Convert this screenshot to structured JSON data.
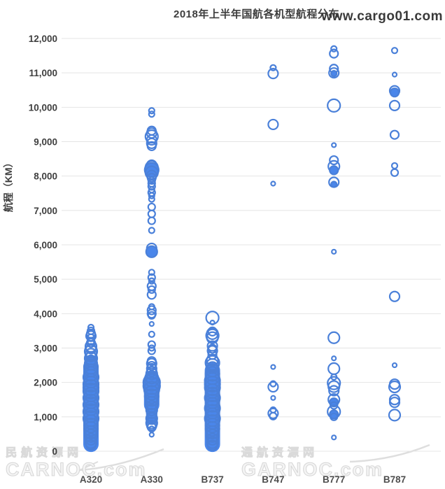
{
  "title": "2018年上半年国航各机型航程分布",
  "watermarks": {
    "top_right": "www.cargo01.com",
    "bottom_left_line1": "民航资源网",
    "bottom_left_line2": "CARNOC.com",
    "bottom_right_line1": "通航资源网",
    "bottom_right_line2": "GARNOC.com"
  },
  "chart_data": {
    "type": "scatter",
    "title": "2018年上半年国航各机型航程分布",
    "xlabel": "",
    "ylabel": "航程（KM）",
    "ylim": [
      0,
      12000
    ],
    "ytick_step": 1000,
    "ytick_labels": [
      "0",
      "1,000",
      "2,000",
      "3,000",
      "4,000",
      "5,000",
      "6,000",
      "7,000",
      "8,000",
      "9,000",
      "10,000",
      "11,000",
      "12,000"
    ],
    "grid": true,
    "legend": "none",
    "categories": [
      "A320",
      "A330",
      "B737",
      "B747",
      "B777",
      "B787"
    ],
    "colors": {
      "bubble_stroke": "#4a80d9",
      "bubble_fill": "#4a86ea",
      "gridline": "#e4e4e4",
      "tick_text": "#3f3f3f",
      "category_text": "#4d4d4d"
    },
    "point_format": "[range_km, radius_px, filled_flag]",
    "series": [
      {
        "name": "A320",
        "dense": [
          {
            "from": 200,
            "to": 2400,
            "r": 11
          },
          {
            "from": 2400,
            "to": 2650,
            "r": 8
          }
        ],
        "points": [
          [
            3600,
            4,
            0
          ],
          [
            3500,
            5,
            0
          ],
          [
            3420,
            6,
            0
          ],
          [
            3350,
            7,
            0
          ],
          [
            3300,
            5,
            0
          ],
          [
            3200,
            5,
            0
          ],
          [
            3150,
            6,
            0
          ],
          [
            3050,
            8,
            0
          ],
          [
            2980,
            7,
            0
          ],
          [
            2900,
            9,
            0
          ],
          [
            2820,
            8,
            0
          ],
          [
            2750,
            7,
            0
          ],
          [
            2700,
            9,
            0
          ],
          [
            2620,
            8,
            0
          ],
          [
            2550,
            9,
            0
          ],
          [
            2450,
            10,
            0
          ],
          [
            2350,
            9,
            0
          ],
          [
            2250,
            10,
            0
          ],
          [
            2150,
            11,
            0
          ],
          [
            2050,
            10,
            0
          ],
          [
            1950,
            11,
            0
          ],
          [
            1850,
            11,
            0
          ],
          [
            1750,
            11,
            0
          ],
          [
            1650,
            10,
            0
          ],
          [
            1550,
            11,
            0
          ],
          [
            1450,
            10,
            0
          ],
          [
            1350,
            11,
            0
          ],
          [
            1250,
            10,
            0
          ],
          [
            1150,
            11,
            0
          ],
          [
            1050,
            10,
            0
          ],
          [
            950,
            11,
            0
          ],
          [
            850,
            10,
            0
          ],
          [
            750,
            10,
            0
          ],
          [
            650,
            10,
            0
          ],
          [
            550,
            9,
            0
          ],
          [
            450,
            9,
            0
          ],
          [
            350,
            8,
            0
          ],
          [
            250,
            8,
            0
          ],
          [
            180,
            7,
            0
          ]
        ]
      },
      {
        "name": "A330",
        "dense": [
          {
            "from": 1350,
            "to": 2100,
            "r": 11
          },
          {
            "from": 950,
            "to": 1350,
            "r": 8
          }
        ],
        "points": [
          [
            9900,
            4,
            0
          ],
          [
            9800,
            4,
            0
          ],
          [
            9320,
            6,
            0
          ],
          [
            9250,
            7,
            0
          ],
          [
            9150,
            9,
            0
          ],
          [
            9050,
            7,
            0
          ],
          [
            8950,
            7,
            0
          ],
          [
            8870,
            6,
            0
          ],
          [
            8320,
            7,
            0
          ],
          [
            8250,
            9,
            0
          ],
          [
            8180,
            10,
            1
          ],
          [
            8100,
            9,
            0
          ],
          [
            8020,
            7,
            0
          ],
          [
            7950,
            6,
            0
          ],
          [
            7870,
            5,
            0
          ],
          [
            7790,
            5,
            0
          ],
          [
            7700,
            5,
            0
          ],
          [
            7600,
            4,
            0
          ],
          [
            7520,
            5,
            0
          ],
          [
            7430,
            4,
            0
          ],
          [
            7330,
            4,
            0
          ],
          [
            7100,
            5,
            0
          ],
          [
            6900,
            5,
            0
          ],
          [
            6700,
            5,
            0
          ],
          [
            6420,
            4,
            0
          ],
          [
            5900,
            7,
            0
          ],
          [
            5800,
            8,
            1
          ],
          [
            5200,
            4,
            0
          ],
          [
            5050,
            5,
            0
          ],
          [
            4950,
            4,
            0
          ],
          [
            4800,
            6,
            0
          ],
          [
            4700,
            5,
            0
          ],
          [
            4550,
            6,
            0
          ],
          [
            4200,
            4,
            0
          ],
          [
            4100,
            6,
            0
          ],
          [
            4000,
            6,
            0
          ],
          [
            3950,
            5,
            0
          ],
          [
            3700,
            3,
            0
          ],
          [
            3400,
            4,
            0
          ],
          [
            3100,
            5,
            0
          ],
          [
            3000,
            4,
            0
          ],
          [
            2920,
            5,
            0
          ],
          [
            2620,
            6,
            0
          ],
          [
            2550,
            7,
            0
          ],
          [
            2480,
            6,
            0
          ],
          [
            2400,
            7,
            0
          ],
          [
            2320,
            7,
            0
          ],
          [
            2250,
            8,
            0
          ],
          [
            2150,
            9,
            0
          ],
          [
            2080,
            10,
            0
          ],
          [
            2000,
            12,
            0
          ],
          [
            1900,
            12,
            0
          ],
          [
            1800,
            11,
            0
          ],
          [
            1700,
            10,
            0
          ],
          [
            1600,
            10,
            0
          ],
          [
            1500,
            9,
            0
          ],
          [
            1400,
            9,
            0
          ],
          [
            1300,
            8,
            0
          ],
          [
            1200,
            8,
            0
          ],
          [
            1100,
            7,
            0
          ],
          [
            1000,
            7,
            0
          ],
          [
            950,
            8,
            0
          ],
          [
            820,
            8,
            0
          ],
          [
            750,
            7,
            0
          ],
          [
            700,
            6,
            0
          ],
          [
            640,
            4,
            0
          ],
          [
            480,
            3,
            0
          ]
        ]
      },
      {
        "name": "B737",
        "dense": [
          {
            "from": 200,
            "to": 2350,
            "r": 11
          }
        ],
        "points": [
          [
            3880,
            9,
            0
          ],
          [
            3740,
            3,
            0
          ],
          [
            3480,
            6,
            0
          ],
          [
            3420,
            8,
            0
          ],
          [
            3360,
            9,
            0
          ],
          [
            3300,
            8,
            0
          ],
          [
            3060,
            7,
            0
          ],
          [
            2980,
            6,
            0
          ],
          [
            2920,
            7,
            0
          ],
          [
            2800,
            6,
            0
          ],
          [
            2650,
            8,
            0
          ],
          [
            2570,
            10,
            0
          ],
          [
            2500,
            9,
            0
          ],
          [
            2430,
            8,
            0
          ],
          [
            2350,
            9,
            0
          ],
          [
            2250,
            10,
            0
          ],
          [
            2150,
            10,
            0
          ],
          [
            2050,
            11,
            0
          ],
          [
            1950,
            11,
            0
          ],
          [
            1850,
            11,
            0
          ],
          [
            1750,
            10,
            0
          ],
          [
            1650,
            10,
            0
          ],
          [
            1550,
            11,
            0
          ],
          [
            1450,
            10,
            0
          ],
          [
            1350,
            10,
            0
          ],
          [
            1250,
            11,
            0
          ],
          [
            1150,
            10,
            0
          ],
          [
            1050,
            10,
            0
          ],
          [
            950,
            11,
            0
          ],
          [
            850,
            10,
            0
          ],
          [
            750,
            10,
            0
          ],
          [
            650,
            10,
            0
          ],
          [
            550,
            9,
            0
          ],
          [
            450,
            9,
            0
          ],
          [
            350,
            8,
            0
          ],
          [
            250,
            8,
            0
          ],
          [
            170,
            7,
            0
          ]
        ]
      },
      {
        "name": "B747",
        "dense": [],
        "points": [
          [
            11150,
            4,
            0
          ],
          [
            10980,
            7,
            0
          ],
          [
            9500,
            7,
            0
          ],
          [
            7780,
            3,
            0
          ],
          [
            2450,
            3,
            0
          ],
          [
            1960,
            4,
            0
          ],
          [
            1870,
            7,
            0
          ],
          [
            1550,
            3,
            0
          ],
          [
            1200,
            4,
            0
          ],
          [
            1100,
            7,
            0
          ],
          [
            1020,
            5,
            0
          ]
        ]
      },
      {
        "name": "B777",
        "dense": [],
        "points": [
          [
            11700,
            4,
            0
          ],
          [
            11560,
            6,
            0
          ],
          [
            11120,
            6,
            0
          ],
          [
            11000,
            7,
            0
          ],
          [
            10980,
            4,
            1
          ],
          [
            10050,
            9,
            0
          ],
          [
            8900,
            3,
            0
          ],
          [
            8460,
            6,
            0
          ],
          [
            8280,
            8,
            0
          ],
          [
            8170,
            6,
            1
          ],
          [
            7820,
            7,
            0
          ],
          [
            7760,
            4,
            1
          ],
          [
            5800,
            3,
            0
          ],
          [
            3300,
            8,
            0
          ],
          [
            2700,
            3,
            0
          ],
          [
            2400,
            8,
            0
          ],
          [
            2160,
            4,
            0
          ],
          [
            1980,
            9,
            0
          ],
          [
            1880,
            8,
            0
          ],
          [
            1760,
            7,
            0
          ],
          [
            1500,
            8,
            0
          ],
          [
            1420,
            6,
            1
          ],
          [
            1330,
            5,
            0
          ],
          [
            1150,
            9,
            0
          ],
          [
            1070,
            6,
            1
          ],
          [
            1000,
            5,
            0
          ],
          [
            400,
            3,
            0
          ]
        ]
      },
      {
        "name": "B787",
        "dense": [],
        "points": [
          [
            11650,
            4,
            0
          ],
          [
            10950,
            3,
            0
          ],
          [
            10480,
            7,
            0
          ],
          [
            10430,
            6,
            1
          ],
          [
            10050,
            7,
            0
          ],
          [
            9200,
            6,
            0
          ],
          [
            8300,
            4,
            0
          ],
          [
            8100,
            5,
            0
          ],
          [
            4500,
            7,
            0
          ],
          [
            2500,
            3,
            0
          ],
          [
            1950,
            7,
            0
          ],
          [
            1870,
            8,
            0
          ],
          [
            1500,
            7,
            0
          ],
          [
            1420,
            7,
            0
          ],
          [
            1050,
            8,
            0
          ]
        ]
      }
    ]
  }
}
